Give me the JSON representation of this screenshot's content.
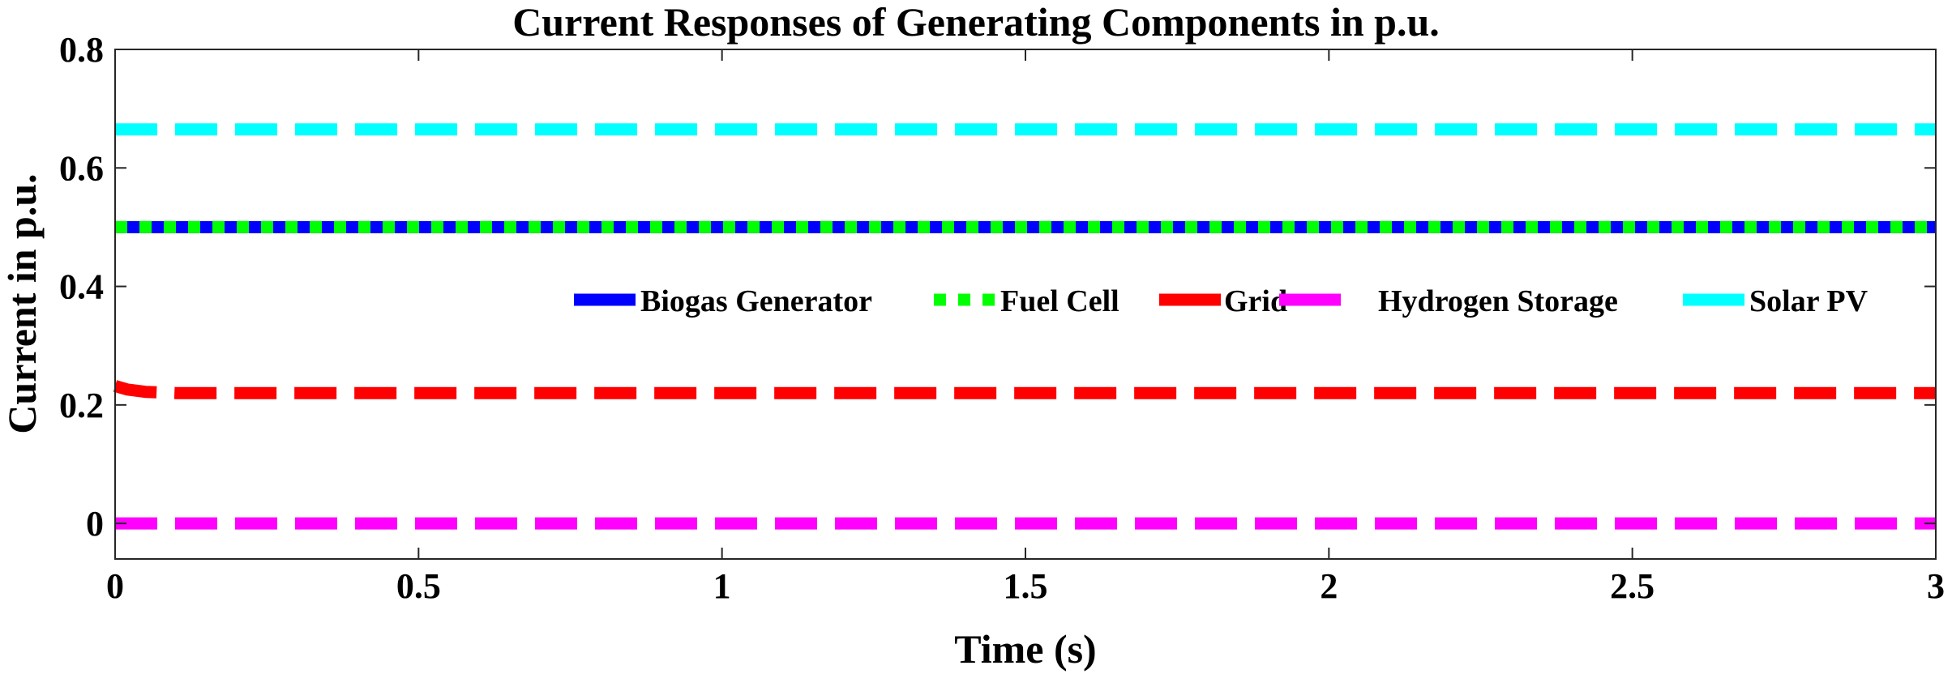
{
  "chart_data": {
    "type": "line",
    "title": "Current Responses of Generating Components in p.u.",
    "xlabel": "Time (s)",
    "ylabel": "Current in p.u.",
    "xlim": [
      0,
      3
    ],
    "ylim": [
      -0.06,
      0.8
    ],
    "x_ticks": [
      0,
      0.5,
      1,
      1.5,
      2,
      2.5,
      3
    ],
    "x_tick_labels": [
      "0",
      "0.5",
      "1",
      "1.5",
      "2",
      "2.5",
      "3"
    ],
    "y_ticks": [
      0,
      0.2,
      0.4,
      0.6,
      0.8
    ],
    "y_tick_labels": [
      "0",
      "0.2",
      "0.4",
      "0.6",
      "0.8"
    ],
    "grid": false,
    "legend_position": "center-right, horizontal",
    "x": [
      0,
      0.02,
      0.05,
      0.1,
      3
    ],
    "series": [
      {
        "name": "Biogas Generator",
        "color": "#0000ff",
        "style": "solid",
        "values": [
          0.5,
          0.5,
          0.5,
          0.5,
          0.5
        ]
      },
      {
        "name": "Fuel Cell",
        "color": "#00ff00",
        "style": "dotted",
        "values": [
          0.5,
          0.5,
          0.5,
          0.5,
          0.5
        ]
      },
      {
        "name": "Grid",
        "color": "#ff0000",
        "style": "dashed",
        "values": [
          0.232,
          0.226,
          0.222,
          0.22,
          0.22
        ]
      },
      {
        "name": "Hydrogen Storage",
        "color": "#ff00ff",
        "style": "dashed",
        "values": [
          0,
          0,
          0,
          0,
          0
        ]
      },
      {
        "name": "Solar PV",
        "color": "#00ffff",
        "style": "dashed",
        "values": [
          0.665,
          0.665,
          0.665,
          0.665,
          0.665
        ]
      }
    ]
  }
}
